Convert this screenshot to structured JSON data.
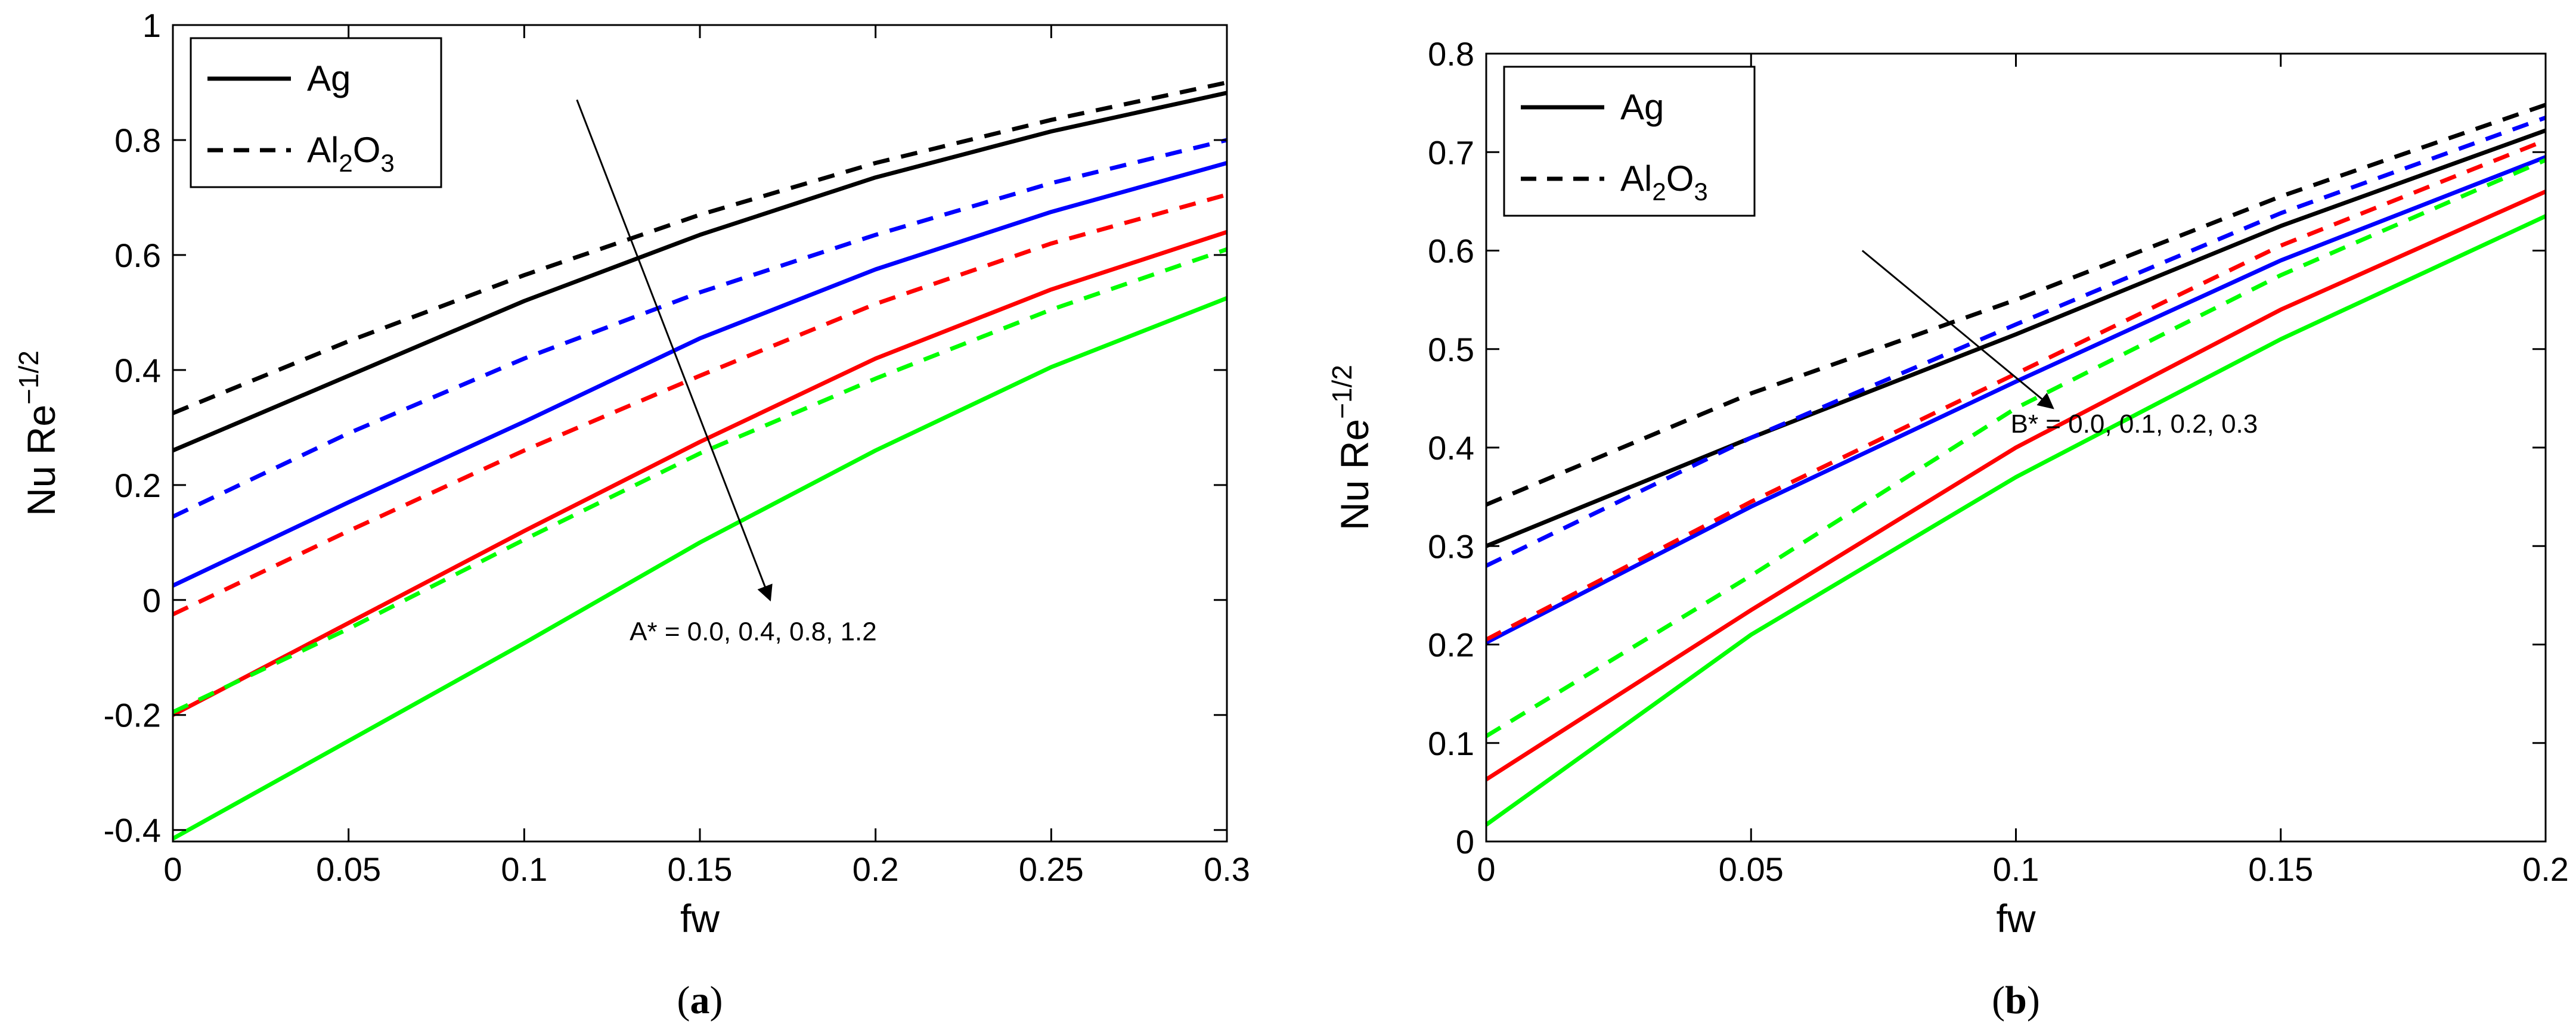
{
  "chart_data": [
    {
      "id": "a",
      "type": "line",
      "caption_letter": "a",
      "xlabel": "fw",
      "ylabel": "Nu Re^-1/2",
      "ylabel_base": "Nu Re",
      "ylabel_exp": "−1/2",
      "xlim": [
        0,
        0.3
      ],
      "ylim": [
        -0.42,
        1
      ],
      "x_ticks": [
        0,
        0.05,
        0.1,
        0.15,
        0.2,
        0.25,
        0.3
      ],
      "x_tick_labels": [
        "0",
        "0.05",
        "0.1",
        "0.15",
        "0.2",
        "0.25",
        "0.3"
      ],
      "y_ticks": [
        -0.4,
        -0.2,
        0,
        0.2,
        0.4,
        0.6,
        0.8,
        1
      ],
      "y_tick_labels": [
        "-0.4",
        "-0.2",
        "0",
        "0.2",
        "0.4",
        "0.6",
        "0.8",
        "1"
      ],
      "x": [
        0,
        0.05,
        0.1,
        0.15,
        0.2,
        0.25,
        0.3
      ],
      "legend": {
        "position": "top-left",
        "entries": [
          {
            "label": "Ag",
            "style": "solid"
          },
          {
            "label_parts": [
              "Al",
              "2",
              "O",
              "3"
            ],
            "label": "Al2O3",
            "style": "dashed"
          }
        ]
      },
      "annotation": {
        "text": "A* = 0.0, 0.4, 0.8, 1.2",
        "arrow_from": [
          0.115,
          0.87
        ],
        "arrow_to": [
          0.17,
          0.0
        ],
        "text_at": [
          0.13,
          -0.07
        ]
      },
      "series": [
        {
          "name": "Ag A*=0.0",
          "color": "#000000",
          "style": "solid",
          "values": [
            0.26,
            0.39,
            0.52,
            0.635,
            0.735,
            0.815,
            0.882
          ]
        },
        {
          "name": "Al2O3 A*=0.0",
          "color": "#000000",
          "style": "dashed",
          "values": [
            0.325,
            0.45,
            0.565,
            0.67,
            0.76,
            0.835,
            0.9
          ]
        },
        {
          "name": "Ag A*=0.4",
          "color": "#0000ff",
          "style": "solid",
          "values": [
            0.025,
            0.17,
            0.31,
            0.455,
            0.575,
            0.675,
            0.76
          ]
        },
        {
          "name": "Al2O3 A*=0.4",
          "color": "#0000ff",
          "style": "dashed",
          "values": [
            0.145,
            0.29,
            0.42,
            0.535,
            0.635,
            0.725,
            0.8
          ]
        },
        {
          "name": "Ag A*=0.8",
          "color": "#ff0000",
          "style": "solid",
          "values": [
            -0.2,
            -0.04,
            0.12,
            0.275,
            0.42,
            0.54,
            0.64
          ]
        },
        {
          "name": "Al2O3 A*=0.8",
          "color": "#ff0000",
          "style": "dashed",
          "values": [
            -0.025,
            0.12,
            0.26,
            0.39,
            0.515,
            0.62,
            0.705
          ]
        },
        {
          "name": "Ag A*=1.2",
          "color": "#00ff00",
          "style": "solid",
          "values": [
            -0.415,
            -0.245,
            -0.075,
            0.1,
            0.26,
            0.405,
            0.525
          ]
        },
        {
          "name": "Al2O3 A*=1.2",
          "color": "#00ff00",
          "style": "dashed",
          "values": [
            -0.195,
            -0.05,
            0.105,
            0.255,
            0.385,
            0.505,
            0.61
          ]
        }
      ]
    },
    {
      "id": "b",
      "type": "line",
      "caption_letter": "b",
      "xlabel": "fw",
      "ylabel": "Nu Re^-1/2",
      "ylabel_base": "Nu Re",
      "ylabel_exp": "−1/2",
      "xlim": [
        0,
        0.2
      ],
      "ylim": [
        0,
        0.8
      ],
      "x_ticks": [
        0,
        0.05,
        0.1,
        0.15,
        0.2
      ],
      "x_tick_labels": [
        "0",
        "0.05",
        "0.1",
        "0.15",
        "0.2"
      ],
      "y_ticks": [
        0,
        0.1,
        0.2,
        0.3,
        0.4,
        0.5,
        0.6,
        0.7,
        0.8
      ],
      "y_tick_labels": [
        "0",
        "0.1",
        "0.2",
        "0.3",
        "0.4",
        "0.5",
        "0.6",
        "0.7",
        "0.8"
      ],
      "x": [
        0,
        0.05,
        0.1,
        0.15,
        0.2
      ],
      "legend": {
        "position": "top-left",
        "entries": [
          {
            "label": "Ag",
            "style": "solid"
          },
          {
            "label_parts": [
              "Al",
              "2",
              "O",
              "3"
            ],
            "label": "Al2O3",
            "style": "dashed"
          }
        ]
      },
      "annotation": {
        "text": "B* = 0.0, 0.1, 0.2, 0.3",
        "arrow_from": [
          0.071,
          0.6
        ],
        "arrow_to": [
          0.107,
          0.44
        ],
        "text_at": [
          0.099,
          0.415
        ]
      },
      "series": [
        {
          "name": "Ag B*=0.0",
          "color": "#000000",
          "style": "solid",
          "values": [
            0.3,
            0.41,
            0.515,
            0.625,
            0.722
          ]
        },
        {
          "name": "Al2O3 B*=0.0",
          "color": "#000000",
          "style": "dashed",
          "values": [
            0.342,
            0.455,
            0.55,
            0.655,
            0.748
          ]
        },
        {
          "name": "Ag B*=0.1",
          "color": "#0000ff",
          "style": "solid",
          "values": [
            0.202,
            0.34,
            0.467,
            0.59,
            0.695
          ]
        },
        {
          "name": "Al2O3 B*=0.1",
          "color": "#0000ff",
          "style": "dashed",
          "values": [
            0.28,
            0.41,
            0.525,
            0.638,
            0.735
          ]
        },
        {
          "name": "Ag B*=0.2",
          "color": "#ff0000",
          "style": "solid",
          "values": [
            0.063,
            0.235,
            0.4,
            0.54,
            0.66
          ]
        },
        {
          "name": "Al2O3 B*=0.2",
          "color": "#ff0000",
          "style": "dashed",
          "values": [
            0.205,
            0.345,
            0.475,
            0.605,
            0.712
          ]
        },
        {
          "name": "Ag B*=0.3",
          "color": "#00ff00",
          "style": "solid",
          "values": [
            0.017,
            0.21,
            0.37,
            0.51,
            0.635
          ]
        },
        {
          "name": "Al2O3 B*=0.3",
          "color": "#00ff00",
          "style": "dashed",
          "values": [
            0.107,
            0.27,
            0.44,
            0.575,
            0.692
          ]
        }
      ]
    }
  ]
}
